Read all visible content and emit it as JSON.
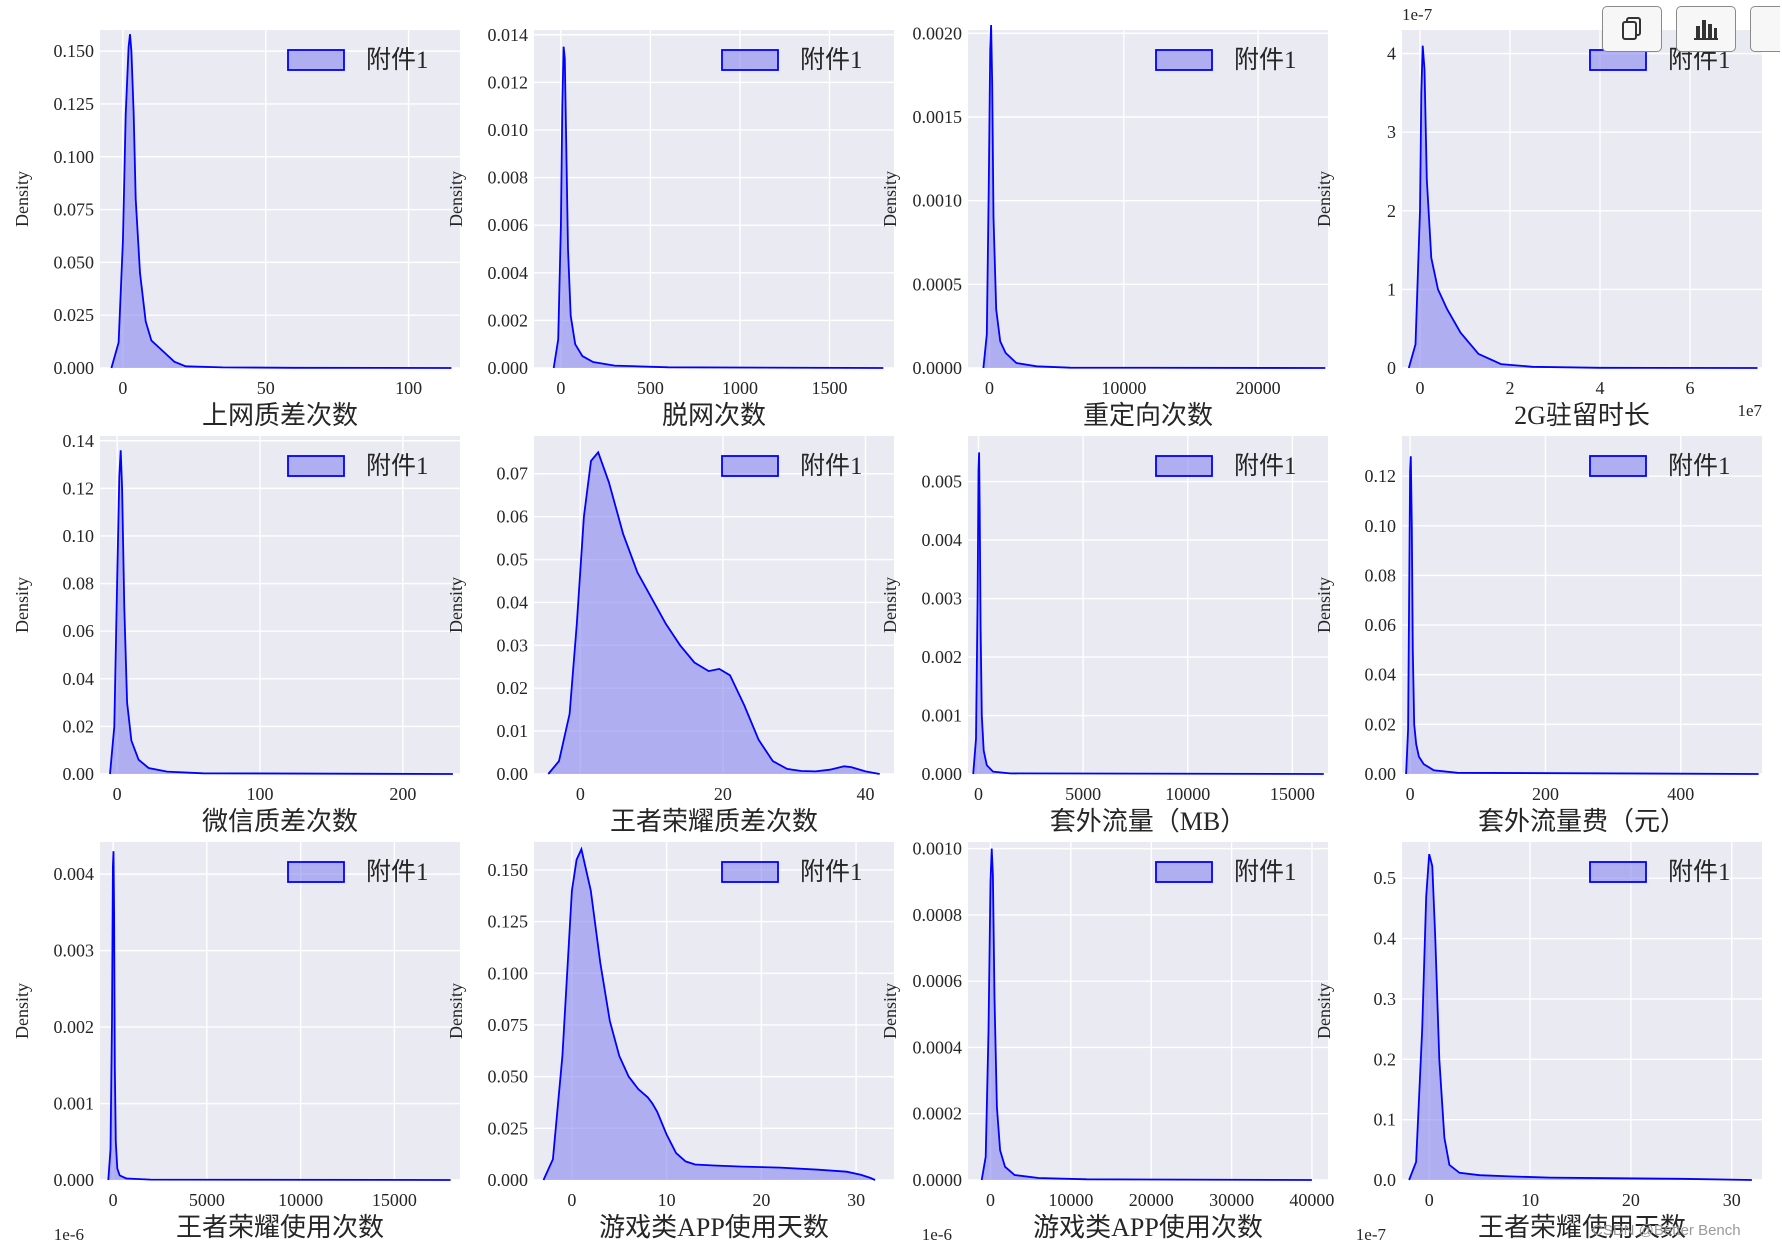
{
  "toolbar": {
    "icons": [
      "copy-icon",
      "bar-chart-icon",
      "more-icon"
    ]
  },
  "watermark": "CSDN @Better Bench",
  "colors": {
    "panel_bg": "#eaeaf2",
    "grid": "#ffffff",
    "line": "#0000ff",
    "fill": "#7b7bf0",
    "text": "#262626"
  },
  "chart_data": [
    {
      "type": "area",
      "xlabel": "上网质差次数",
      "ylabel": "Density",
      "legend": "附件1",
      "legend_position": "top-right",
      "xlim": [
        -8,
        118
      ],
      "ylim": [
        0,
        0.16
      ],
      "xticks": [
        0,
        50,
        100
      ],
      "yticks": [
        0,
        0.025,
        0.05,
        0.075,
        0.1,
        0.125,
        0.15
      ],
      "ytick_labels": [
        "0.000",
        "0.025",
        "0.050",
        "0.075",
        "0.100",
        "0.125",
        "0.150"
      ],
      "x": [
        -4,
        -1.5,
        0,
        1,
        2,
        2.5,
        3,
        3.8,
        4.5,
        6,
        8,
        10,
        14,
        18,
        22,
        35,
        60,
        115
      ],
      "y": [
        0,
        0.012,
        0.06,
        0.12,
        0.152,
        0.158,
        0.15,
        0.12,
        0.08,
        0.045,
        0.022,
        0.013,
        0.008,
        0.003,
        0.0008,
        0.0003,
        0.0001,
        0
      ]
    },
    {
      "type": "area",
      "xlabel": "脱网次数",
      "ylabel": "Density",
      "legend": "附件1",
      "legend_position": "top-right",
      "xlim": [
        -150,
        1860
      ],
      "ylim": [
        0,
        0.0142
      ],
      "xticks": [
        0,
        500,
        1000,
        1500
      ],
      "yticks": [
        0,
        0.002,
        0.004,
        0.006,
        0.008,
        0.01,
        0.012,
        0.014
      ],
      "ytick_labels": [
        "0.000",
        "0.002",
        "0.004",
        "0.006",
        "0.008",
        "0.010",
        "0.012",
        "0.014"
      ],
      "x": [
        -40,
        -15,
        0,
        8,
        15,
        22,
        30,
        40,
        55,
        80,
        120,
        180,
        300,
        600,
        1800
      ],
      "y": [
        0,
        0.0012,
        0.006,
        0.011,
        0.0135,
        0.013,
        0.0095,
        0.005,
        0.0022,
        0.001,
        0.0005,
        0.00025,
        0.0001,
        3e-05,
        0
      ]
    },
    {
      "type": "area",
      "xlabel": "重定向次数",
      "ylabel": "Density",
      "legend": "附件1",
      "legend_position": "top-right",
      "xlim": [
        -1600,
        25200
      ],
      "ylim": [
        0,
        0.00202
      ],
      "xticks": [
        0,
        10000,
        20000
      ],
      "yticks": [
        0,
        0.0005,
        0.001,
        0.0015,
        0.002
      ],
      "ytick_labels": [
        "0.0000",
        "0.0005",
        "0.0010",
        "0.0015",
        "0.0020"
      ],
      "x": [
        -450,
        -200,
        -50,
        50,
        120,
        200,
        300,
        500,
        800,
        1200,
        2000,
        3500,
        6000,
        25000
      ],
      "y": [
        0,
        0.0002,
        0.0011,
        0.0019,
        0.00205,
        0.0017,
        0.0009,
        0.00035,
        0.00016,
        9e-05,
        3e-05,
        1e-05,
        2e-06,
        0
      ]
    },
    {
      "type": "area",
      "xlabel": "2G驻留时长",
      "ylabel": "Density",
      "legend": "附件1",
      "legend_position": "top-right",
      "axis_scale_labels": {
        "x": "1e7",
        "y": "1e-7"
      },
      "xlim": [
        -0.4,
        7.6
      ],
      "ylim": [
        0,
        4.3
      ],
      "xticks": [
        0,
        2,
        4,
        6
      ],
      "yticks": [
        0,
        1,
        2,
        3,
        4
      ],
      "x": [
        -0.25,
        -0.1,
        0,
        0.03,
        0.06,
        0.1,
        0.15,
        0.25,
        0.4,
        0.6,
        0.9,
        1.3,
        1.8,
        2.5,
        4,
        7.5
      ],
      "y": [
        0,
        0.3,
        2.0,
        3.5,
        4.1,
        3.8,
        2.4,
        1.4,
        1.0,
        0.75,
        0.45,
        0.18,
        0.05,
        0.015,
        0.003,
        0
      ]
    },
    {
      "type": "area",
      "xlabel": "微信质差次数",
      "ylabel": "Density",
      "legend": "附件1",
      "legend_position": "top-right",
      "xlim": [
        -12,
        240
      ],
      "ylim": [
        0,
        0.142
      ],
      "xticks": [
        0,
        100,
        200
      ],
      "yticks": [
        0,
        0.02,
        0.04,
        0.06,
        0.08,
        0.1,
        0.12,
        0.14
      ],
      "ytick_labels": [
        "0.00",
        "0.02",
        "0.04",
        "0.06",
        "0.08",
        "0.10",
        "0.12",
        "0.14"
      ],
      "x": [
        -5,
        -2,
        0,
        1.5,
        2.5,
        3.5,
        5,
        7,
        10,
        15,
        22,
        35,
        60,
        235
      ],
      "y": [
        0,
        0.02,
        0.08,
        0.125,
        0.136,
        0.12,
        0.07,
        0.03,
        0.014,
        0.006,
        0.0025,
        0.001,
        0.0003,
        0
      ]
    },
    {
      "type": "area",
      "xlabel": "王者荣耀质差次数",
      "ylabel": "Density",
      "legend": "附件1",
      "legend_position": "top-right",
      "xlim": [
        -6.5,
        44
      ],
      "ylim": [
        0,
        0.0788
      ],
      "xticks": [
        0,
        20,
        40
      ],
      "yticks": [
        0,
        0.01,
        0.02,
        0.03,
        0.04,
        0.05,
        0.06,
        0.07
      ],
      "ytick_labels": [
        "0.00",
        "0.01",
        "0.02",
        "0.03",
        "0.04",
        "0.05",
        "0.06",
        "0.07"
      ],
      "x": [
        -4.5,
        -3,
        -1.5,
        -0.5,
        0.5,
        1.5,
        2.5,
        4,
        6,
        8,
        10,
        12,
        14,
        16,
        18,
        19.5,
        21,
        23,
        25,
        27,
        29,
        31,
        33,
        35,
        37,
        38,
        40,
        42
      ],
      "y": [
        0,
        0.003,
        0.014,
        0.035,
        0.06,
        0.073,
        0.075,
        0.068,
        0.056,
        0.047,
        0.041,
        0.035,
        0.03,
        0.026,
        0.024,
        0.0245,
        0.023,
        0.016,
        0.008,
        0.003,
        0.0012,
        0.0007,
        0.0006,
        0.001,
        0.0018,
        0.0016,
        0.0006,
        0
      ]
    },
    {
      "type": "area",
      "xlabel": "套外流量（MB）",
      "ylabel": "Density",
      "legend": "附件1",
      "legend_position": "top-right",
      "xlim": [
        -500,
        16700
      ],
      "ylim": [
        0,
        0.00578
      ],
      "xticks": [
        0,
        5000,
        10000,
        15000
      ],
      "yticks": [
        0,
        0.001,
        0.002,
        0.003,
        0.004,
        0.005
      ],
      "ytick_labels": [
        "0.000",
        "0.001",
        "0.002",
        "0.003",
        "0.004",
        "0.005"
      ],
      "x": [
        -250,
        -120,
        -40,
        0,
        30,
        60,
        100,
        160,
        250,
        400,
        700,
        1500,
        16500
      ],
      "y": [
        0,
        0.0006,
        0.003,
        0.0052,
        0.0055,
        0.0045,
        0.0025,
        0.001,
        0.0004,
        0.00015,
        4e-05,
        1e-05,
        0
      ]
    },
    {
      "type": "area",
      "xlabel": "套外流量费（元）",
      "ylabel": "Density",
      "legend": "附件1",
      "legend_position": "top-right",
      "xlim": [
        -12,
        520
      ],
      "ylim": [
        0,
        0.1362
      ],
      "xticks": [
        0,
        200,
        400
      ],
      "yticks": [
        0,
        0.02,
        0.04,
        0.06,
        0.08,
        0.1,
        0.12
      ],
      "ytick_labels": [
        "0.00",
        "0.02",
        "0.04",
        "0.06",
        "0.08",
        "0.10",
        "0.12"
      ],
      "x": [
        -6,
        -3,
        -1,
        0,
        1,
        2.5,
        4,
        6,
        9,
        13,
        20,
        35,
        70,
        515
      ],
      "y": [
        0,
        0.018,
        0.085,
        0.122,
        0.128,
        0.1,
        0.05,
        0.02,
        0.012,
        0.007,
        0.004,
        0.0015,
        0.0005,
        0
      ]
    },
    {
      "type": "area",
      "xlabel": "王者荣耀使用次数",
      "ylabel": "Density",
      "legend": "附件1",
      "legend_position": "top-right",
      "axis_scale_labels": {
        "x": "1e-6"
      },
      "xlim": [
        -700,
        18500
      ],
      "ylim": [
        0,
        0.00442
      ],
      "xticks": [
        0,
        5000,
        10000,
        15000
      ],
      "yticks": [
        0,
        0.001,
        0.002,
        0.003,
        0.004
      ],
      "ytick_labels": [
        "0.000",
        "0.001",
        "0.002",
        "0.003",
        "0.004"
      ],
      "x": [
        -260,
        -140,
        -60,
        -10,
        20,
        50,
        90,
        140,
        220,
        350,
        700,
        2000,
        18000
      ],
      "y": [
        0,
        0.0004,
        0.0021,
        0.0041,
        0.0043,
        0.0035,
        0.0015,
        0.0005,
        0.00015,
        6e-05,
        2e-05,
        5e-06,
        0
      ]
    },
    {
      "type": "area",
      "xlabel": "游戏类APP使用天数",
      "ylabel": "Density",
      "legend": "附件1",
      "legend_position": "top-right",
      "xlim": [
        -4,
        34
      ],
      "ylim": [
        0,
        0.1635
      ],
      "xticks": [
        0,
        10,
        20,
        30
      ],
      "yticks": [
        0,
        0.025,
        0.05,
        0.075,
        0.1,
        0.125,
        0.15
      ],
      "ytick_labels": [
        "0.000",
        "0.025",
        "0.050",
        "0.075",
        "0.100",
        "0.125",
        "0.150"
      ],
      "x": [
        -3,
        -2,
        -1,
        0,
        0.5,
        1,
        2,
        3,
        4,
        5,
        6,
        7,
        8,
        8.5,
        9,
        10,
        11,
        12,
        13,
        15,
        18,
        22,
        26,
        29,
        30.5,
        31.5,
        32
      ],
      "y": [
        0,
        0.01,
        0.06,
        0.14,
        0.155,
        0.16,
        0.14,
        0.105,
        0.077,
        0.06,
        0.05,
        0.044,
        0.04,
        0.037,
        0.033,
        0.022,
        0.013,
        0.009,
        0.0075,
        0.007,
        0.0065,
        0.006,
        0.005,
        0.004,
        0.0025,
        0.001,
        0
      ]
    },
    {
      "type": "area",
      "xlabel": "游戏类APP使用次数",
      "ylabel": "Density",
      "legend": "附件1",
      "legend_position": "top-right",
      "axis_scale_labels": {
        "x": "1e-6"
      },
      "xlim": [
        -2800,
        42000
      ],
      "ylim": [
        0,
        0.00102
      ],
      "xticks": [
        0,
        10000,
        20000,
        30000,
        40000
      ],
      "yticks": [
        0,
        0.0002,
        0.0004,
        0.0006,
        0.0008,
        0.001
      ],
      "ytick_labels": [
        "0.0000",
        "0.0002",
        "0.0004",
        "0.0006",
        "0.0008",
        "0.0010"
      ],
      "x": [
        -1100,
        -600,
        -250,
        0,
        150,
        300,
        500,
        800,
        1200,
        1800,
        3000,
        6000,
        12000,
        40000
      ],
      "y": [
        0,
        7e-05,
        0.00045,
        0.0009,
        0.001,
        0.00092,
        0.00055,
        0.00022,
        9e-05,
        4e-05,
        1.5e-05,
        6e-06,
        2e-06,
        0
      ]
    },
    {
      "type": "area",
      "xlabel": "王者荣耀使用天数",
      "ylabel": "Density",
      "legend": "附件1",
      "legend_position": "top-right",
      "axis_scale_labels": {
        "x": "1e-7"
      },
      "xlim": [
        -2.7,
        33
      ],
      "ylim": [
        0,
        0.56
      ],
      "xticks": [
        0,
        10,
        20,
        30
      ],
      "yticks": [
        0,
        0.1,
        0.2,
        0.3,
        0.4,
        0.5
      ],
      "ytick_labels": [
        "0.0",
        "0.1",
        "0.2",
        "0.3",
        "0.4",
        "0.5"
      ],
      "x": [
        -2,
        -1.3,
        -0.7,
        -0.3,
        0,
        0.3,
        0.6,
        1,
        1.5,
        2,
        3,
        5,
        8,
        12,
        18,
        25,
        32
      ],
      "y": [
        0,
        0.03,
        0.25,
        0.47,
        0.54,
        0.52,
        0.4,
        0.2,
        0.07,
        0.025,
        0.012,
        0.008,
        0.006,
        0.004,
        0.003,
        0.002,
        0
      ]
    }
  ]
}
